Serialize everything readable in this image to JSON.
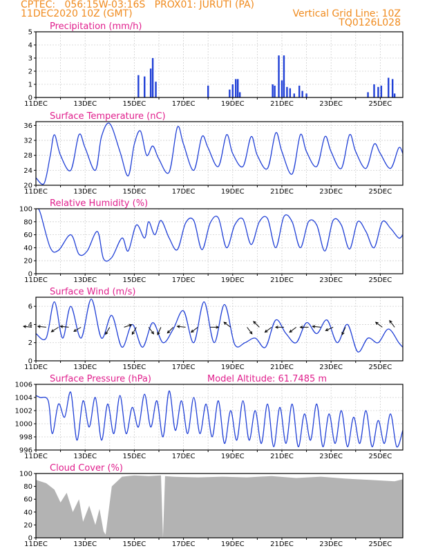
{
  "header": {
    "line1_left": "CPTEC:   056:15W-03:16S   PROX01: JURUTI (PA)",
    "line2_left": "11DEC2020 10Z (GMT)",
    "line2_right": "Vertical Grid Line: 10Z",
    "line3_right": "TQ0126L028"
  },
  "colors": {
    "header": "#f08a1c",
    "title": "#e01e8c",
    "series": "#1f3fd6",
    "cloud": "#b3b3b3"
  },
  "date_labels": [
    "11DEC",
    "13DEC",
    "15DEC",
    "17DEC",
    "19DEC",
    "21DEC",
    "23DEC",
    "25DEC"
  ],
  "chart_data": [
    {
      "type": "bar",
      "title": "Precipitation (mm/h)",
      "ylim": [
        0,
        5
      ],
      "yticks": [
        "0",
        "1",
        "2",
        "3",
        "4",
        "5"
      ],
      "grid": true,
      "x": [
        "15DEC 14Z",
        "15DEC 20Z",
        "16DEC 02Z",
        "16DEC 04Z",
        "16DEC 07Z",
        "18DEC 10Z",
        "19DEC 07Z",
        "19DEC 10Z",
        "19DEC 13Z",
        "19DEC 15Z",
        "19DEC 17Z",
        "21DEC 01Z",
        "21DEC 03Z",
        "21DEC 07Z",
        "21DEC 10Z",
        "21DEC 12Z",
        "21DEC 15Z",
        "21DEC 18Z",
        "21DEC 22Z",
        "22DEC 03Z",
        "22DEC 06Z",
        "22DEC 10Z",
        "24DEC 22Z",
        "25DEC 04Z",
        "25DEC 08Z",
        "25DEC 11Z",
        "25DEC 18Z",
        "25DEC 22Z",
        "26DEC 00Z"
      ],
      "values": [
        1.7,
        1.6,
        2.2,
        3.0,
        1.2,
        0.9,
        0.6,
        1.0,
        1.4,
        1.4,
        0.4,
        1.0,
        0.9,
        3.2,
        1.3,
        3.2,
        0.8,
        0.7,
        0.3,
        0.9,
        0.5,
        0.3,
        0.4,
        1.0,
        0.8,
        0.9,
        1.5,
        1.4,
        0.3
      ]
    },
    {
      "type": "line",
      "title": "Surface Temperature (nC)",
      "ylim": [
        20,
        37
      ],
      "yticks": [
        "20",
        "24",
        "28",
        "32",
        "36"
      ],
      "grid": true,
      "series": [
        {
          "x": [
            "11DEC 10Z",
            "11DEC 18Z",
            "12DEC 00Z",
            "12DEC 04Z",
            "12DEC 10Z",
            "12DEC 20Z",
            "13DEC 04Z",
            "13DEC 10Z",
            "13DEC 20Z",
            "14DEC 02Z",
            "14DEC 10Z",
            "14DEC 20Z",
            "15DEC 04Z",
            "15DEC 10Z",
            "15DEC 16Z",
            "15DEC 22Z",
            "16DEC 04Z",
            "16DEC 10Z",
            "16DEC 20Z",
            "17DEC 04Z",
            "17DEC 10Z",
            "17DEC 20Z",
            "18DEC 04Z",
            "18DEC 10Z",
            "18DEC 20Z",
            "19DEC 04Z",
            "19DEC 10Z",
            "19DEC 20Z",
            "20DEC 04Z",
            "20DEC 10Z",
            "20DEC 20Z",
            "21DEC 04Z",
            "21DEC 10Z",
            "21DEC 20Z",
            "22DEC 04Z",
            "22DEC 10Z",
            "22DEC 20Z",
            "23DEC 04Z",
            "23DEC 10Z",
            "23DEC 20Z",
            "24DEC 04Z",
            "24DEC 10Z",
            "24DEC 20Z",
            "25DEC 04Z",
            "25DEC 10Z",
            "25DEC 20Z",
            "26DEC 04Z",
            "26DEC 08Z"
          ],
          "values": [
            22,
            20.5,
            28,
            33.5,
            28,
            24,
            33.5,
            30,
            24,
            33,
            36.5,
            29,
            22.5,
            31,
            34.5,
            28,
            30.5,
            27,
            23.5,
            35.5,
            31,
            24,
            33,
            30,
            25,
            33.5,
            28.5,
            25,
            33,
            28,
            24.5,
            34,
            29,
            23,
            33.5,
            29,
            25,
            33,
            29,
            24.5,
            33.5,
            29,
            24.5,
            31,
            28.5,
            24.5,
            30,
            28.5
          ]
        }
      ]
    },
    {
      "type": "line",
      "title": "Relative Humidity (%)",
      "ylim": [
        0,
        100
      ],
      "yticks": [
        "0",
        "20",
        "40",
        "60",
        "80",
        "100"
      ],
      "grid": true,
      "series": [
        {
          "x": [
            "11DEC 10Z",
            "11DEC 14Z",
            "12DEC 00Z",
            "12DEC 08Z",
            "12DEC 20Z",
            "13DEC 04Z",
            "13DEC 12Z",
            "13DEC 22Z",
            "14DEC 04Z",
            "14DEC 12Z",
            "14DEC 22Z",
            "15DEC 04Z",
            "15DEC 12Z",
            "15DEC 20Z",
            "16DEC 00Z",
            "16DEC 06Z",
            "16DEC 12Z",
            "16DEC 20Z",
            "17DEC 04Z",
            "17DEC 12Z",
            "17DEC 20Z",
            "18DEC 04Z",
            "18DEC 12Z",
            "18DEC 20Z",
            "19DEC 04Z",
            "19DEC 12Z",
            "19DEC 20Z",
            "20DEC 04Z",
            "20DEC 12Z",
            "20DEC 20Z",
            "21DEC 04Z",
            "21DEC 12Z",
            "21DEC 20Z",
            "22DEC 04Z",
            "22DEC 12Z",
            "22DEC 20Z",
            "23DEC 04Z",
            "23DEC 12Z",
            "23DEC 20Z",
            "24DEC 04Z",
            "24DEC 12Z",
            "24DEC 20Z",
            "25DEC 04Z",
            "25DEC 12Z",
            "25DEC 20Z",
            "26DEC 04Z",
            "26DEC 08Z"
          ],
          "values": [
            100,
            95,
            40,
            36,
            60,
            30,
            35,
            65,
            23,
            25,
            55,
            35,
            75,
            55,
            80,
            60,
            82,
            55,
            37,
            78,
            82,
            37,
            78,
            86,
            40,
            75,
            84,
            45,
            80,
            85,
            40,
            88,
            80,
            40,
            80,
            75,
            35,
            82,
            75,
            38,
            80,
            65,
            40,
            80,
            70,
            55,
            60
          ]
        }
      ]
    },
    {
      "type": "line",
      "title": "Surface Wind (m/s)",
      "ylim": [
        0,
        7
      ],
      "yticks": [
        "0",
        "2",
        "4",
        "6"
      ],
      "grid": true,
      "series": [
        {
          "x": [
            "11DEC 10Z",
            "11DEC 20Z",
            "12DEC 04Z",
            "12DEC 12Z",
            "12DEC 20Z",
            "13DEC 06Z",
            "13DEC 16Z",
            "14DEC 02Z",
            "14DEC 12Z",
            "14DEC 22Z",
            "15DEC 08Z",
            "15DEC 18Z",
            "16DEC 04Z",
            "16DEC 14Z",
            "17DEC 00Z",
            "17DEC 10Z",
            "17DEC 20Z",
            "18DEC 06Z",
            "18DEC 16Z",
            "19DEC 02Z",
            "19DEC 12Z",
            "19DEC 22Z",
            "20DEC 08Z",
            "20DEC 18Z",
            "21DEC 04Z",
            "21DEC 14Z",
            "22DEC 00Z",
            "22DEC 10Z",
            "22DEC 20Z",
            "23DEC 06Z",
            "23DEC 16Z",
            "24DEC 02Z",
            "24DEC 12Z",
            "24DEC 22Z",
            "25DEC 08Z",
            "25DEC 18Z",
            "26DEC 04Z",
            "26DEC 08Z"
          ],
          "values": [
            3,
            2.5,
            6.5,
            2.5,
            6,
            2.5,
            6.8,
            2.5,
            5,
            1.5,
            4,
            1.5,
            4.2,
            2,
            3.5,
            5.5,
            2,
            6.5,
            2,
            6.2,
            1.8,
            2,
            2.5,
            1.5,
            4.5,
            3,
            2,
            4.2,
            3,
            4.5,
            2,
            4,
            1,
            2.5,
            2,
            3.5,
            2,
            1.5
          ]
        }
      ],
      "wind_vectors": [
        {
          "x": "11DEC 06Z",
          "u": -1,
          "v": 0.1
        },
        {
          "x": "11DEC 20Z",
          "u": -1,
          "v": 0.1
        },
        {
          "x": "12DEC 08Z",
          "u": -0.85,
          "v": -0.55
        },
        {
          "x": "12DEC 18Z",
          "u": -1,
          "v": 0.1
        },
        {
          "x": "13DEC 06Z",
          "u": -0.85,
          "v": -0.5
        },
        {
          "x": "14DEC 10Z",
          "u": -0.5,
          "v": -0.85
        },
        {
          "x": "15DEC 00Z",
          "u": 0.9,
          "v": 0.3
        },
        {
          "x": "15DEC 12Z",
          "u": -0.5,
          "v": -0.85
        },
        {
          "x": "16DEC 00Z",
          "u": 0.6,
          "v": -0.8
        },
        {
          "x": "16DEC 12Z",
          "u": -0.4,
          "v": -0.9
        },
        {
          "x": "17DEC 00Z",
          "u": -0.7,
          "v": -0.7
        },
        {
          "x": "17DEC 12Z",
          "u": -1,
          "v": 0.1
        },
        {
          "x": "18DEC 00Z",
          "u": -0.8,
          "v": -0.6
        },
        {
          "x": "18DEC 12Z",
          "u": 1,
          "v": 0
        },
        {
          "x": "19DEC 08Z",
          "u": -0.8,
          "v": 0.6
        },
        {
          "x": "20DEC 00Z",
          "u": 0.6,
          "v": -0.8
        },
        {
          "x": "20DEC 12Z",
          "u": -0.7,
          "v": 0.7
        },
        {
          "x": "21DEC 00Z",
          "u": -0.8,
          "v": -0.6
        },
        {
          "x": "21DEC 12Z",
          "u": -1,
          "v": 0
        },
        {
          "x": "22DEC 00Z",
          "u": -0.8,
          "v": -0.6
        },
        {
          "x": "22DEC 12Z",
          "u": -1,
          "v": 0
        },
        {
          "x": "23DEC 00Z",
          "u": -1,
          "v": 0.1
        },
        {
          "x": "23DEC 12Z",
          "u": -0.9,
          "v": -0.4
        },
        {
          "x": "24DEC 00Z",
          "u": -0.4,
          "v": -0.9
        },
        {
          "x": "25DEC 12Z",
          "u": -0.8,
          "v": 0.6
        },
        {
          "x": "26DEC 00Z",
          "u": -0.6,
          "v": 0.8
        }
      ]
    },
    {
      "type": "line",
      "title": "Surface Pressure (hPa)",
      "annotation": "Model Altitude: 61.7485 m",
      "ylim": [
        996,
        1006
      ],
      "yticks": [
        "996",
        "998",
        "1000",
        "1002",
        "1004",
        "1006"
      ],
      "grid": true,
      "series": [
        {
          "x": [
            "11DEC 10Z",
            "11DEC 14Z",
            "11DEC 22Z",
            "12DEC 02Z",
            "12DEC 08Z",
            "12DEC 14Z",
            "12DEC 20Z",
            "13DEC 02Z",
            "13DEC 08Z",
            "13DEC 14Z",
            "13DEC 20Z",
            "14DEC 02Z",
            "14DEC 08Z",
            "14DEC 14Z",
            "14DEC 20Z",
            "15DEC 02Z",
            "15DEC 08Z",
            "15DEC 14Z",
            "15DEC 20Z",
            "16DEC 02Z",
            "16DEC 08Z",
            "16DEC 14Z",
            "16DEC 20Z",
            "17DEC 02Z",
            "17DEC 08Z",
            "17DEC 14Z",
            "17DEC 20Z",
            "18DEC 02Z",
            "18DEC 08Z",
            "18DEC 14Z",
            "18DEC 20Z",
            "19DEC 02Z",
            "19DEC 08Z",
            "19DEC 14Z",
            "19DEC 20Z",
            "20DEC 02Z",
            "20DEC 08Z",
            "20DEC 14Z",
            "20DEC 20Z",
            "21DEC 02Z",
            "21DEC 08Z",
            "21DEC 14Z",
            "21DEC 20Z",
            "22DEC 02Z",
            "22DEC 08Z",
            "22DEC 14Z",
            "22DEC 20Z",
            "23DEC 02Z",
            "23DEC 08Z",
            "23DEC 14Z",
            "23DEC 20Z",
            "24DEC 02Z",
            "24DEC 08Z",
            "24DEC 14Z",
            "24DEC 20Z",
            "25DEC 02Z",
            "25DEC 08Z",
            "25DEC 14Z",
            "25DEC 20Z",
            "26DEC 02Z",
            "26DEC 08Z"
          ],
          "values": [
            1004.3,
            1004,
            1003.5,
            998.5,
            1003,
            1001,
            1004.8,
            997.5,
            1003.5,
            999.5,
            1004,
            997.5,
            1003,
            998.5,
            1004.3,
            998.5,
            1002.5,
            999.5,
            1004.5,
            999.5,
            1003.5,
            998,
            1005,
            999,
            1003.5,
            998.5,
            1004,
            998.5,
            1003,
            998,
            1003.5,
            997,
            1002,
            997.5,
            1003.5,
            997.5,
            1002,
            997,
            1003,
            996.5,
            1002.5,
            997,
            1003,
            996.5,
            1001.5,
            997.5,
            1003,
            996.5,
            1001.5,
            997,
            1002,
            996.5,
            1001,
            997,
            1002,
            996.5,
            1000.5,
            997,
            1001.5,
            996.5,
            999
          ]
        }
      ]
    },
    {
      "type": "area",
      "title": "Cloud Cover (%)",
      "ylim": [
        0,
        100
      ],
      "yticks": [
        "0",
        "20",
        "40",
        "60",
        "80",
        "100"
      ],
      "grid": false,
      "series": [
        {
          "x": [
            "11DEC 10Z",
            "11DEC 20Z",
            "12DEC 04Z",
            "12DEC 10Z",
            "12DEC 16Z",
            "12DEC 22Z",
            "13DEC 04Z",
            "13DEC 08Z",
            "13DEC 14Z",
            "13DEC 20Z",
            "14DEC 00Z",
            "14DEC 04Z",
            "14DEC 06Z",
            "14DEC 12Z",
            "14DEC 22Z",
            "15DEC 10Z",
            "16DEC 00Z",
            "16DEC 12Z",
            "16DEC 14Z",
            "16DEC 16Z",
            "17DEC 00Z",
            "18DEC 00Z",
            "19DEC 00Z",
            "20DEC 00Z",
            "21DEC 00Z",
            "22DEC 00Z",
            "23DEC 00Z",
            "24DEC 00Z",
            "25DEC 00Z",
            "26DEC 00Z",
            "26DEC 08Z"
          ],
          "values": [
            90,
            85,
            75,
            55,
            70,
            40,
            60,
            25,
            50,
            20,
            45,
            10,
            5,
            80,
            95,
            97,
            96,
            97,
            0,
            96,
            95,
            94,
            95,
            94,
            96,
            93,
            95,
            92,
            90,
            88,
            91
          ]
        }
      ]
    }
  ]
}
